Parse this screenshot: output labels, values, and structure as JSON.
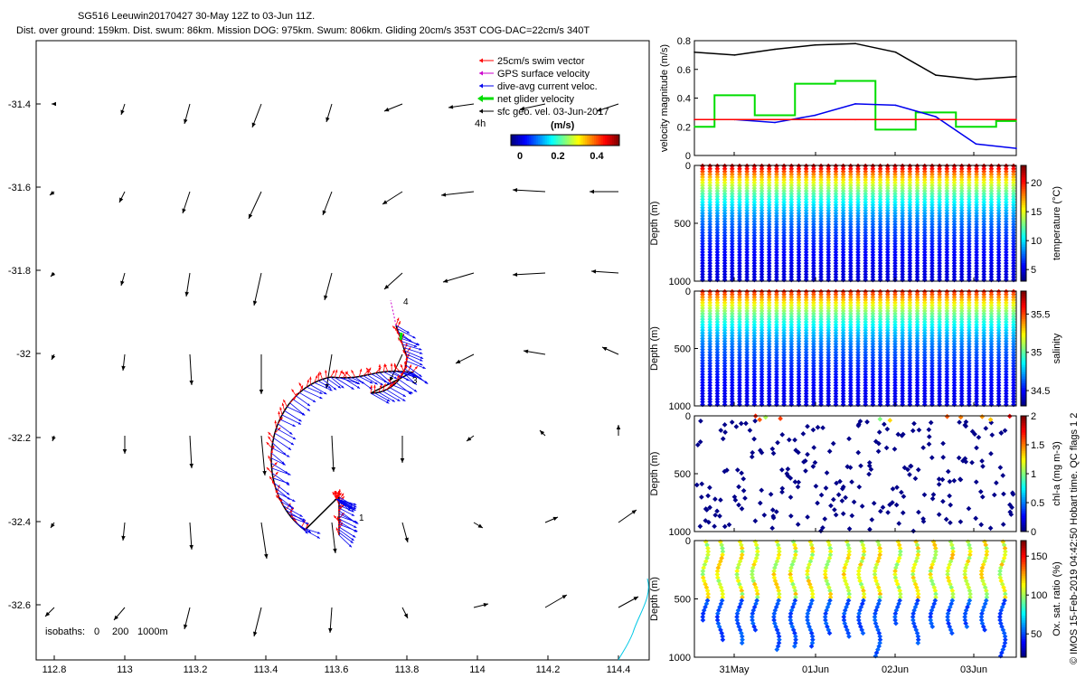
{
  "figure": {
    "title_line1": "SG516 Leeuwin20170427 30-May 12Z to 03-Jun 11Z.",
    "title_line2": "Dist. over ground: 159km. Dist. swum: 86km. Mission DOG: 975km. Swum: 806km. Gliding 20cm/s 353T COG-DAC=22cm/s 340T",
    "watermark": "© IMOS 15-Feb-2019 04:42:50 Hobart time. QC flags 1 2",
    "colors": {
      "swim": "#ff0000",
      "gps": "#cc00cc",
      "dac": "#0000ee",
      "net": "#00dd00",
      "sfc": "#000000",
      "coast": "#00c8e6"
    }
  },
  "map": {
    "x_ticks": [
      "112.8",
      "113",
      "113.2",
      "113.4",
      "113.6",
      "113.8",
      "114",
      "114.2",
      "114.4"
    ],
    "y_ticks": [
      "-31.4",
      "-31.6",
      "-31.8",
      "-32",
      "-32.2",
      "-32.4",
      "-32.6"
    ],
    "legend": {
      "swim": "25cm/s swim vector",
      "gps": "GPS surface velocity",
      "dac": "dive-avg current veloc.",
      "net": "net glider velocity",
      "sfc": "sfc geo. vel. 03-Jun-2017",
      "interval": "4h"
    },
    "colorbar": {
      "label": "(m/s)",
      "ticks": [
        "0",
        "0.2",
        "0.4"
      ]
    },
    "isobaths": {
      "prefix": "isobaths:",
      "v1": "0",
      "v2": "200",
      "v3": "1000m"
    },
    "track_labels": [
      "1",
      "3",
      "4"
    ]
  },
  "chart_data": [
    {
      "type": "line",
      "title": "",
      "ylabel": "velocity magnitude (m/s)",
      "x_ticks": [
        "31May",
        "01Jun",
        "02Jun",
        "03Jun"
      ],
      "x": [
        0,
        0.5,
        1,
        1.5,
        2,
        2.5,
        3,
        3.5,
        4
      ],
      "ylim": [
        0,
        0.8
      ],
      "y_ticks": [
        "0",
        "0.2",
        "0.4",
        "0.6",
        "0.8"
      ],
      "series": [
        {
          "name": "surface current",
          "color": "#000000",
          "values": [
            0.72,
            0.7,
            0.74,
            0.77,
            0.78,
            0.72,
            0.56,
            0.53,
            0.55
          ]
        },
        {
          "name": "net glider velocity",
          "color": "#00dd00",
          "values": [
            0.2,
            0.42,
            0.28,
            0.5,
            0.52,
            0.18,
            0.3,
            0.2,
            0.24
          ]
        },
        {
          "name": "dive-avg current",
          "color": "#0000ee",
          "values": [
            0.25,
            0.25,
            0.23,
            0.28,
            0.36,
            0.35,
            0.27,
            0.08,
            0.05
          ]
        },
        {
          "name": "25cm/s swim",
          "color": "#ff0000",
          "values": [
            0.25,
            0.25,
            0.25,
            0.25,
            0.25,
            0.25,
            0.25,
            0.25,
            0.25
          ]
        }
      ]
    },
    {
      "type": "scatter",
      "title": "",
      "ylabel": "Depth (m)",
      "colorbar_label": "temperature (°C)",
      "y_ticks": [
        "0",
        "500",
        "1000"
      ],
      "ylim": [
        1000,
        0
      ],
      "cbar_ticks": [
        "5",
        "10",
        "15",
        "20"
      ],
      "cbar_range": [
        3,
        23
      ],
      "profile_count": 43,
      "surface_value": 22,
      "bottom_value": 4
    },
    {
      "type": "scatter",
      "title": "",
      "ylabel": "Depth (m)",
      "colorbar_label": "salinity",
      "y_ticks": [
        "0",
        "500",
        "1000"
      ],
      "ylim": [
        1000,
        0
      ],
      "cbar_ticks": [
        "34.5",
        "35",
        "35.5"
      ],
      "cbar_range": [
        34.3,
        35.8
      ],
      "profile_count": 43,
      "surface_value": 35.6,
      "bottom_value": 34.4
    },
    {
      "type": "scatter",
      "title": "",
      "ylabel": "Depth (m)",
      "colorbar_label": "chl-a (mg m-3)",
      "y_ticks": [
        "0",
        "500",
        "1000"
      ],
      "ylim": [
        1000,
        0
      ],
      "cbar_ticks": [
        "0",
        "0.5",
        "1",
        "1.5",
        "2"
      ],
      "cbar_range": [
        0,
        2
      ],
      "profile_count": 36,
      "surface_value": 0.9,
      "bottom_value": 0.02
    },
    {
      "type": "scatter",
      "title": "",
      "ylabel": "Depth (m)",
      "colorbar_label": "Ox. sat. ratio (%)",
      "y_ticks": [
        "0",
        "500",
        "1000"
      ],
      "ylim": [
        1000,
        0
      ],
      "cbar_ticks": [
        "50",
        "100",
        "150"
      ],
      "cbar_range": [
        20,
        170
      ],
      "profile_count": 18,
      "surface_value": 95,
      "bottom_value": 45
    }
  ]
}
